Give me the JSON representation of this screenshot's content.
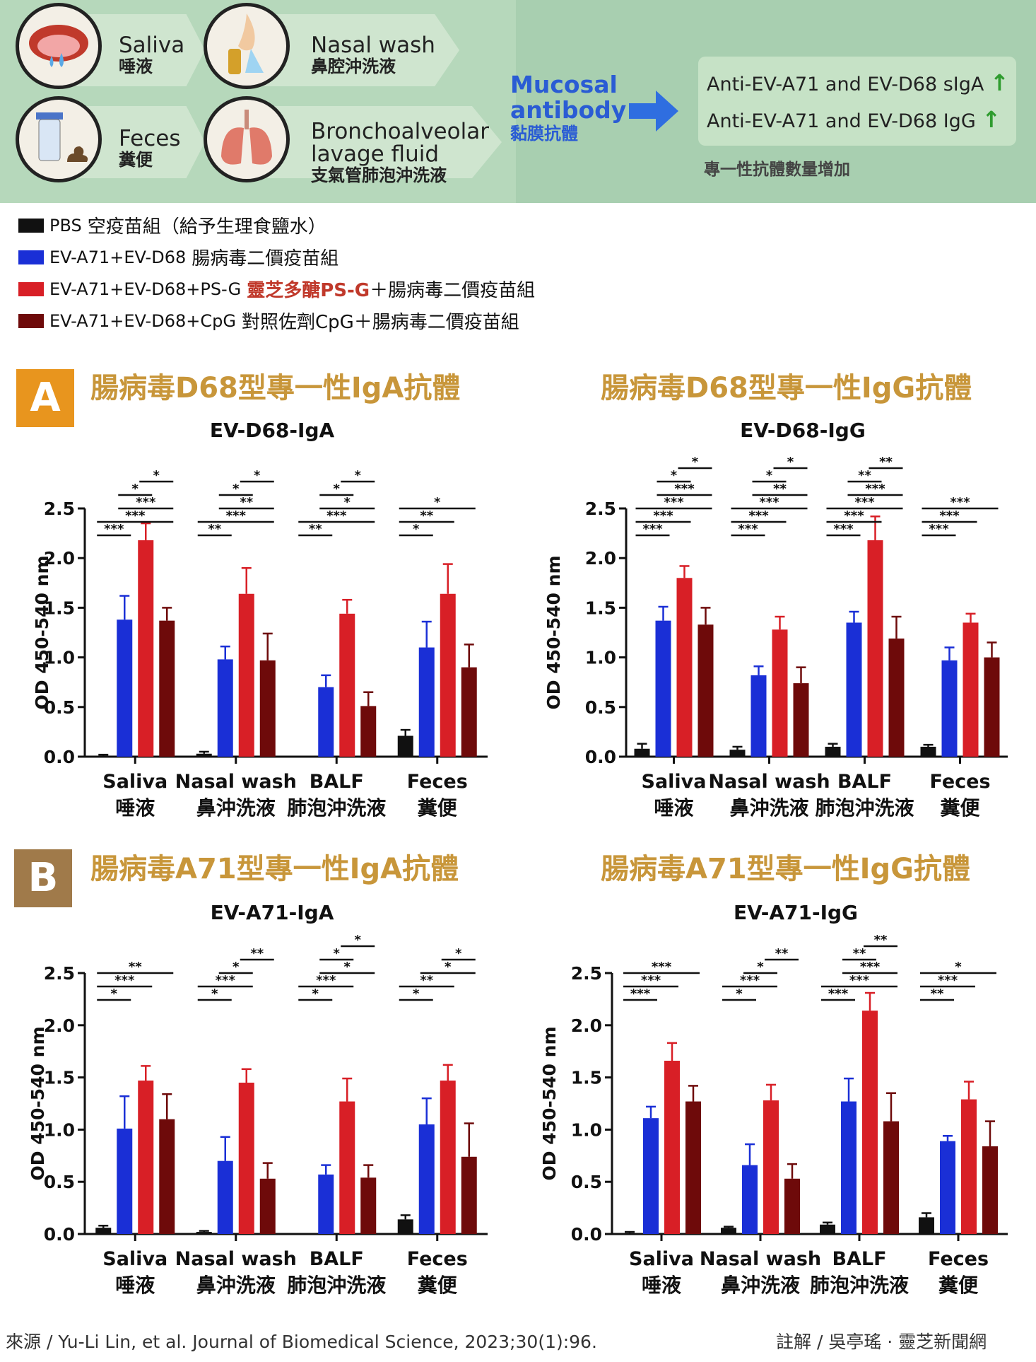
{
  "banner": {
    "samples": [
      {
        "en": "Saliva",
        "zh": "唾液"
      },
      {
        "en": "Nasal wash",
        "zh": "鼻腔沖洗液"
      },
      {
        "en": "Feces",
        "zh": "糞便"
      },
      {
        "en": "Bronchoalveolar lavage fluid",
        "zh": "支氣管肺泡沖洗液"
      }
    ],
    "mucosal_en": "Mucosal antibody",
    "mucosal_zh": "黏膜抗體",
    "results": [
      "Anti-EV-A71 and EV-D68 sIgA",
      "Anti-EV-A71 and EV-D68 IgG"
    ],
    "result_arrow": "↑",
    "result_zh": "專一性抗體數量增加"
  },
  "legend": [
    {
      "code": "PBS",
      "desc": "空疫苗組（給予生理食鹽水）",
      "em": "",
      "rest": "",
      "color": "#111111"
    },
    {
      "code": "EV-A71+EV-D68",
      "desc": "腸病毒二價疫苗組",
      "em": "",
      "rest": "",
      "color": "#1a2fd6"
    },
    {
      "code": "EV-A71+EV-D68+PS-G",
      "desc": "",
      "em": "靈芝多醣PS-G",
      "rest": "＋腸病毒二價疫苗組",
      "color": "#d81f26"
    },
    {
      "code": "EV-A71+EV-D68+CpG",
      "desc": "對照佐劑CpG＋腸病毒二價疫苗組",
      "em": "",
      "rest": "",
      "color": "#6e0a0a"
    }
  ],
  "tags": {
    "a": "A",
    "b": "B"
  },
  "panel_titles": {
    "a_left": "腸病毒D68型專一性IgA抗體",
    "a_right": "腸病毒D68型專一性IgG抗體",
    "b_left": "腸病毒A71型專一性IgA抗體",
    "b_right": "腸病毒A71型專一性IgG抗體"
  },
  "colors": {
    "pbs": "#111111",
    "bivalent": "#1a2fd6",
    "psg": "#d81f26",
    "cpg": "#6e0a0a",
    "tag_a": "#e8951e",
    "tag_b": "#a07a4a"
  },
  "chart_data": [
    {
      "type": "bar",
      "title": "EV-D68-IgA",
      "ylabel": "OD 450-540 nm",
      "ylim": [
        0,
        2.5
      ],
      "yticks": [
        "0.0",
        "0.5",
        "1.0",
        "1.5",
        "2.0",
        "2.5"
      ],
      "categories": [
        "Saliva",
        "Nasal wash",
        "BALF",
        "Feces"
      ],
      "categories_zh": [
        "唾液",
        "鼻沖洗液",
        "肺泡沖洗液",
        "糞便"
      ],
      "series": [
        {
          "values": [
            0.01,
            0.03,
            0.0,
            0.21
          ],
          "errors": [
            0.01,
            0.02,
            0.0,
            0.06
          ]
        },
        {
          "values": [
            1.38,
            0.98,
            0.7,
            1.1
          ],
          "errors": [
            0.24,
            0.13,
            0.12,
            0.26
          ]
        },
        {
          "values": [
            2.18,
            1.64,
            1.44,
            1.64
          ],
          "errors": [
            0.17,
            0.26,
            0.14,
            0.3
          ]
        },
        {
          "values": [
            1.37,
            0.97,
            0.51,
            0.9
          ],
          "errors": [
            0.13,
            0.27,
            0.14,
            0.23
          ]
        }
      ],
      "significance": [
        [
          {
            "pair": [
              2,
              3
            ],
            "label": "*"
          },
          {
            "pair": [
              1,
              2
            ],
            "label": "*"
          },
          {
            "pair": [
              1,
              3
            ],
            "label": "***"
          },
          {
            "pair": [
              0,
              3
            ],
            "label": "***"
          },
          {
            "pair": [
              0,
              1
            ],
            "label": "***"
          }
        ],
        [
          {
            "pair": [
              2,
              3
            ],
            "label": "*"
          },
          {
            "pair": [
              1,
              2
            ],
            "label": "*"
          },
          {
            "pair": [
              1,
              3
            ],
            "label": "**"
          },
          {
            "pair": [
              0,
              3
            ],
            "label": "***"
          },
          {
            "pair": [
              0,
              1
            ],
            "label": "**"
          }
        ],
        [
          {
            "pair": [
              2,
              3
            ],
            "label": "*"
          },
          {
            "pair": [
              1,
              2
            ],
            "label": "*"
          },
          {
            "pair": [
              1,
              3
            ],
            "label": "*"
          },
          {
            "pair": [
              0,
              3
            ],
            "label": "***"
          },
          {
            "pair": [
              0,
              1
            ],
            "label": "**"
          }
        ],
        [
          {
            "pair": [
              0,
              3
            ],
            "label": "*"
          },
          {
            "pair": [
              0,
              2
            ],
            "label": "**"
          },
          {
            "pair": [
              0,
              1
            ],
            "label": "*"
          }
        ]
      ]
    },
    {
      "type": "bar",
      "title": "EV-D68-IgG",
      "ylabel": "OD 450-540 nm",
      "ylim": [
        0,
        2.5
      ],
      "yticks": [
        "0.0",
        "0.5",
        "1.0",
        "1.5",
        "2.0",
        "2.5"
      ],
      "categories": [
        "Saliva",
        "Nasal wash",
        "BALF",
        "Feces"
      ],
      "categories_zh": [
        "唾液",
        "鼻沖洗液",
        "肺泡沖洗液",
        "糞便"
      ],
      "series": [
        {
          "values": [
            0.08,
            0.07,
            0.1,
            0.1
          ],
          "errors": [
            0.05,
            0.03,
            0.03,
            0.02
          ]
        },
        {
          "values": [
            1.37,
            0.82,
            1.35,
            0.97
          ],
          "errors": [
            0.14,
            0.09,
            0.11,
            0.13
          ]
        },
        {
          "values": [
            1.8,
            1.28,
            2.18,
            1.35
          ],
          "errors": [
            0.12,
            0.13,
            0.24,
            0.09
          ]
        },
        {
          "values": [
            1.33,
            0.74,
            1.19,
            1.0
          ],
          "errors": [
            0.17,
            0.16,
            0.22,
            0.15
          ]
        }
      ],
      "significance": [
        [
          {
            "pair": [
              2,
              3
            ],
            "label": "*"
          },
          {
            "pair": [
              1,
              2
            ],
            "label": "*"
          },
          {
            "pair": [
              1,
              3
            ],
            "label": "***"
          },
          {
            "pair": [
              0,
              3
            ],
            "label": "***"
          },
          {
            "pair": [
              0,
              2
            ],
            "label": "***"
          },
          {
            "pair": [
              0,
              1
            ],
            "label": "***"
          }
        ],
        [
          {
            "pair": [
              2,
              3
            ],
            "label": "*"
          },
          {
            "pair": [
              1,
              2
            ],
            "label": "*"
          },
          {
            "pair": [
              1,
              3
            ],
            "label": "**"
          },
          {
            "pair": [
              0,
              3
            ],
            "label": "***"
          },
          {
            "pair": [
              0,
              2
            ],
            "label": "***"
          },
          {
            "pair": [
              0,
              1
            ],
            "label": "***"
          }
        ],
        [
          {
            "pair": [
              2,
              3
            ],
            "label": "**"
          },
          {
            "pair": [
              1,
              2
            ],
            "label": "**"
          },
          {
            "pair": [
              1,
              3
            ],
            "label": "***"
          },
          {
            "pair": [
              0,
              3
            ],
            "label": "***"
          },
          {
            "pair": [
              0,
              2
            ],
            "label": "***"
          },
          {
            "pair": [
              0,
              1
            ],
            "label": "***"
          }
        ],
        [
          {
            "pair": [
              0,
              3
            ],
            "label": "***"
          },
          {
            "pair": [
              0,
              2
            ],
            "label": "***"
          },
          {
            "pair": [
              0,
              1
            ],
            "label": "***"
          }
        ]
      ]
    },
    {
      "type": "bar",
      "title": "EV-A71-IgA",
      "ylabel": "OD 450-540 nm",
      "ylim": [
        0,
        2.5
      ],
      "yticks": [
        "0.0",
        "0.5",
        "1.0",
        "1.5",
        "2.0",
        "2.5"
      ],
      "categories": [
        "Saliva",
        "Nasal wash",
        "BALF",
        "Feces"
      ],
      "categories_zh": [
        "唾液",
        "鼻沖洗液",
        "肺泡沖洗液",
        "糞便"
      ],
      "series": [
        {
          "values": [
            0.06,
            0.02,
            0.0,
            0.14
          ],
          "errors": [
            0.02,
            0.01,
            0.0,
            0.04
          ]
        },
        {
          "values": [
            1.01,
            0.7,
            0.57,
            1.05
          ],
          "errors": [
            0.31,
            0.23,
            0.09,
            0.25
          ]
        },
        {
          "values": [
            1.47,
            1.45,
            1.27,
            1.47
          ],
          "errors": [
            0.14,
            0.13,
            0.22,
            0.15
          ]
        },
        {
          "values": [
            1.1,
            0.53,
            0.54,
            0.74
          ],
          "errors": [
            0.24,
            0.15,
            0.12,
            0.32
          ]
        }
      ],
      "significance": [
        [
          {
            "pair": [
              0,
              3
            ],
            "label": "**"
          },
          {
            "pair": [
              0,
              2
            ],
            "label": "***"
          },
          {
            "pair": [
              0,
              1
            ],
            "label": "*"
          }
        ],
        [
          {
            "pair": [
              2,
              3
            ],
            "label": "**"
          },
          {
            "pair": [
              1,
              2
            ],
            "label": "*"
          },
          {
            "pair": [
              0,
              2
            ],
            "label": "***"
          },
          {
            "pair": [
              0,
              1
            ],
            "label": "*"
          }
        ],
        [
          {
            "pair": [
              2,
              3
            ],
            "label": "*"
          },
          {
            "pair": [
              1,
              2
            ],
            "label": "*"
          },
          {
            "pair": [
              1,
              3
            ],
            "label": "*"
          },
          {
            "pair": [
              0,
              2
            ],
            "label": "***"
          },
          {
            "pair": [
              0,
              1
            ],
            "label": "*"
          }
        ],
        [
          {
            "pair": [
              2,
              3
            ],
            "label": "*"
          },
          {
            "pair": [
              1,
              3
            ],
            "label": "*"
          },
          {
            "pair": [
              0,
              2
            ],
            "label": "**"
          },
          {
            "pair": [
              0,
              1
            ],
            "label": "*"
          }
        ]
      ]
    },
    {
      "type": "bar",
      "title": "EV-A71-IgG",
      "ylabel": "OD 450-540 nm",
      "ylim": [
        0,
        2.5
      ],
      "yticks": [
        "0.0",
        "0.5",
        "1.0",
        "1.5",
        "2.0",
        "2.5"
      ],
      "categories": [
        "Saliva",
        "Nasal wash",
        "BALF",
        "Feces"
      ],
      "categories_zh": [
        "唾液",
        "鼻沖洗液",
        "肺泡沖洗液",
        "糞便"
      ],
      "series": [
        {
          "values": [
            0.01,
            0.06,
            0.09,
            0.16
          ],
          "errors": [
            0.01,
            0.01,
            0.02,
            0.04
          ]
        },
        {
          "values": [
            1.11,
            0.66,
            1.27,
            0.89
          ],
          "errors": [
            0.11,
            0.2,
            0.22,
            0.05
          ]
        },
        {
          "values": [
            1.66,
            1.28,
            2.14,
            1.29
          ],
          "errors": [
            0.17,
            0.15,
            0.17,
            0.17
          ]
        },
        {
          "values": [
            1.27,
            0.53,
            1.08,
            0.84
          ],
          "errors": [
            0.15,
            0.14,
            0.27,
            0.24
          ]
        }
      ],
      "significance": [
        [
          {
            "pair": [
              0,
              3
            ],
            "label": "***"
          },
          {
            "pair": [
              0,
              2
            ],
            "label": "***"
          },
          {
            "pair": [
              0,
              1
            ],
            "label": "***"
          }
        ],
        [
          {
            "pair": [
              2,
              3
            ],
            "label": "**"
          },
          {
            "pair": [
              1,
              2
            ],
            "label": "*"
          },
          {
            "pair": [
              0,
              2
            ],
            "label": "***"
          },
          {
            "pair": [
              0,
              1
            ],
            "label": "*"
          }
        ],
        [
          {
            "pair": [
              2,
              3
            ],
            "label": "**"
          },
          {
            "pair": [
              1,
              2
            ],
            "label": "**"
          },
          {
            "pair": [
              1,
              3
            ],
            "label": "***"
          },
          {
            "pair": [
              0,
              3
            ],
            "label": "***"
          },
          {
            "pair": [
              0,
              1
            ],
            "label": "***"
          }
        ],
        [
          {
            "pair": [
              0,
              3
            ],
            "label": "*"
          },
          {
            "pair": [
              0,
              2
            ],
            "label": "***"
          },
          {
            "pair": [
              0,
              1
            ],
            "label": "**"
          }
        ]
      ]
    }
  ],
  "footer": {
    "source": "來源 / Yu-Li Lin, et al. Journal of Biomedical Science, 2023;30(1):96.",
    "note": "註解 / 吳亭瑤 · 靈芝新聞網"
  }
}
